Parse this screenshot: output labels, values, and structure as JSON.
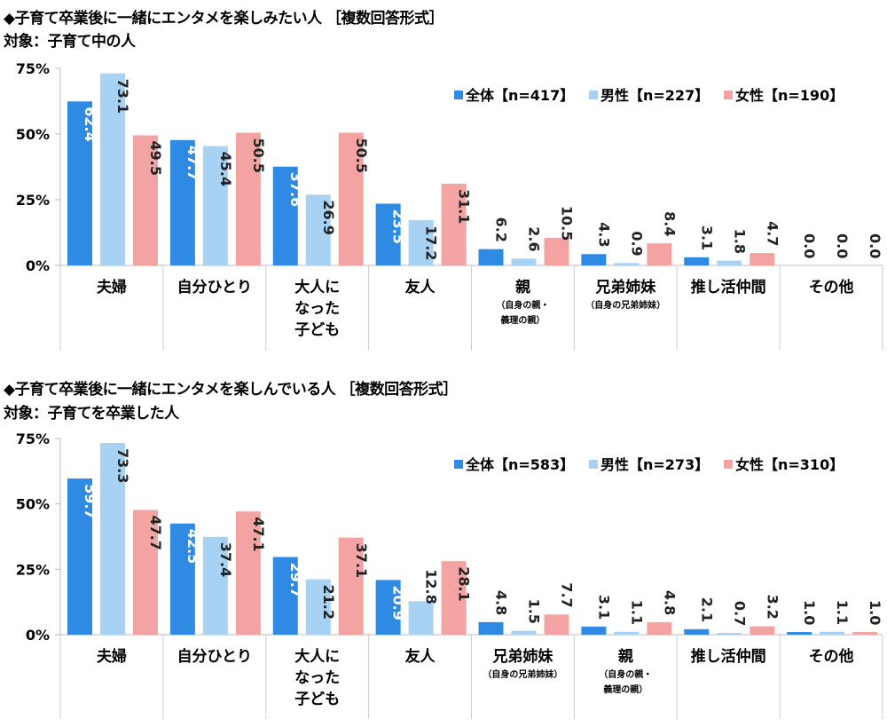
{
  "colors": {
    "all": "#2f8ae4",
    "male": "#a8d2f4",
    "female": "#f4a3a3"
  },
  "chart_data": [
    {
      "type": "bar",
      "title": "◆子育て卒業後に一緒にエンタメを楽しみたい人 ［複数回答形式］",
      "subtitle": "対象：子育て中の人",
      "ylim": [
        0,
        75
      ],
      "yticks": [
        "0%",
        "25%",
        "50%",
        "75%"
      ],
      "legend_position": "top-right",
      "categories": [
        {
          "label": [
            "夫婦"
          ],
          "sub": []
        },
        {
          "label": [
            "自分ひとり"
          ],
          "sub": []
        },
        {
          "label": [
            "大人に",
            "なった",
            "子ども"
          ],
          "sub": []
        },
        {
          "label": [
            "友人"
          ],
          "sub": []
        },
        {
          "label": [
            "親"
          ],
          "sub": [
            "（自身の親・",
            "義理の親）"
          ]
        },
        {
          "label": [
            "兄弟姉妹"
          ],
          "sub": [
            "（自身の兄弟姉妹）"
          ]
        },
        {
          "label": [
            "推し活仲間"
          ],
          "sub": []
        },
        {
          "label": [
            "その他"
          ],
          "sub": []
        }
      ],
      "series": [
        {
          "name": "全体【n=417】",
          "values": [
            62.4,
            47.7,
            37.6,
            23.5,
            6.2,
            4.3,
            3.1,
            0.0
          ]
        },
        {
          "name": "男性【n=227】",
          "values": [
            73.1,
            45.4,
            26.9,
            17.2,
            2.6,
            0.9,
            1.8,
            0.0
          ]
        },
        {
          "name": "女性【n=190】",
          "values": [
            49.5,
            50.5,
            50.5,
            31.1,
            10.5,
            8.4,
            4.7,
            0.0
          ]
        }
      ]
    },
    {
      "type": "bar",
      "title": "◆子育て卒業後に一緒にエンタメを楽しんでいる人 ［複数回答形式］",
      "subtitle": "対象：子育てを卒業した人",
      "ylim": [
        0,
        75
      ],
      "yticks": [
        "0%",
        "25%",
        "50%",
        "75%"
      ],
      "legend_position": "top-right",
      "categories": [
        {
          "label": [
            "夫婦"
          ],
          "sub": []
        },
        {
          "label": [
            "自分ひとり"
          ],
          "sub": []
        },
        {
          "label": [
            "大人に",
            "なった",
            "子ども"
          ],
          "sub": []
        },
        {
          "label": [
            "友人"
          ],
          "sub": []
        },
        {
          "label": [
            "兄弟姉妹"
          ],
          "sub": [
            "（自身の兄弟姉妹）"
          ]
        },
        {
          "label": [
            "親"
          ],
          "sub": [
            "（自身の親・",
            "義理の親）"
          ]
        },
        {
          "label": [
            "推し活仲間"
          ],
          "sub": []
        },
        {
          "label": [
            "その他"
          ],
          "sub": []
        }
      ],
      "series": [
        {
          "name": "全体【n=583】",
          "values": [
            59.7,
            42.5,
            29.7,
            20.9,
            4.8,
            3.1,
            2.1,
            1.0
          ]
        },
        {
          "name": "男性【n=273】",
          "values": [
            73.3,
            37.4,
            21.2,
            12.8,
            1.5,
            1.1,
            0.7,
            1.1
          ]
        },
        {
          "name": "女性【n=310】",
          "values": [
            47.7,
            47.1,
            37.1,
            28.1,
            7.7,
            4.8,
            3.2,
            1.0
          ]
        }
      ]
    }
  ]
}
